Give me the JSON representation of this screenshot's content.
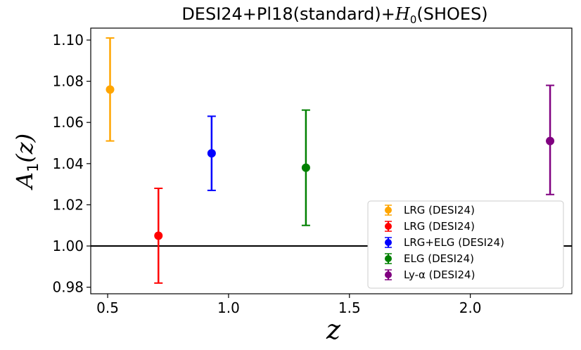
{
  "chart_data": {
    "type": "scatter",
    "title": "DESI24+Pl18(standard)+H0(SHOES)",
    "xlabel": "z",
    "ylabel": "A1(z)",
    "xlim": [
      0.43,
      2.42
    ],
    "ylim": [
      0.9768,
      1.1058
    ],
    "xticks": [
      0.5,
      1.0,
      1.5,
      2.0
    ],
    "xtick_labels": [
      "0.5",
      "1.0",
      "1.5",
      "2.0"
    ],
    "yticks": [
      0.98,
      1.0,
      1.02,
      1.04,
      1.06,
      1.08,
      1.1
    ],
    "ytick_labels": [
      "0.98",
      "1.00",
      "1.02",
      "1.04",
      "1.06",
      "1.08",
      "1.10"
    ],
    "reference_line": {
      "y": 1.0,
      "color": "#000000"
    },
    "grid": false,
    "legend_position": "lower-right",
    "series": [
      {
        "name": "LRG (DESI24)",
        "color": "#ffa500",
        "x": 0.51,
        "y": 1.076,
        "err_low": 1.051,
        "err_high": 1.101
      },
      {
        "name": "LRG (DESI24)",
        "color": "#ff0000",
        "x": 0.71,
        "y": 1.005,
        "err_low": 0.982,
        "err_high": 1.028
      },
      {
        "name": "LRG+ELG (DESI24)",
        "color": "#0000ff",
        "x": 0.93,
        "y": 1.045,
        "err_low": 1.027,
        "err_high": 1.063
      },
      {
        "name": "ELG (DESI24)",
        "color": "#008000",
        "x": 1.32,
        "y": 1.038,
        "err_low": 1.01,
        "err_high": 1.066
      },
      {
        "name": "Ly-α (DESI24)",
        "color": "#800080",
        "x": 2.33,
        "y": 1.051,
        "err_low": 1.025,
        "err_high": 1.078
      }
    ]
  }
}
